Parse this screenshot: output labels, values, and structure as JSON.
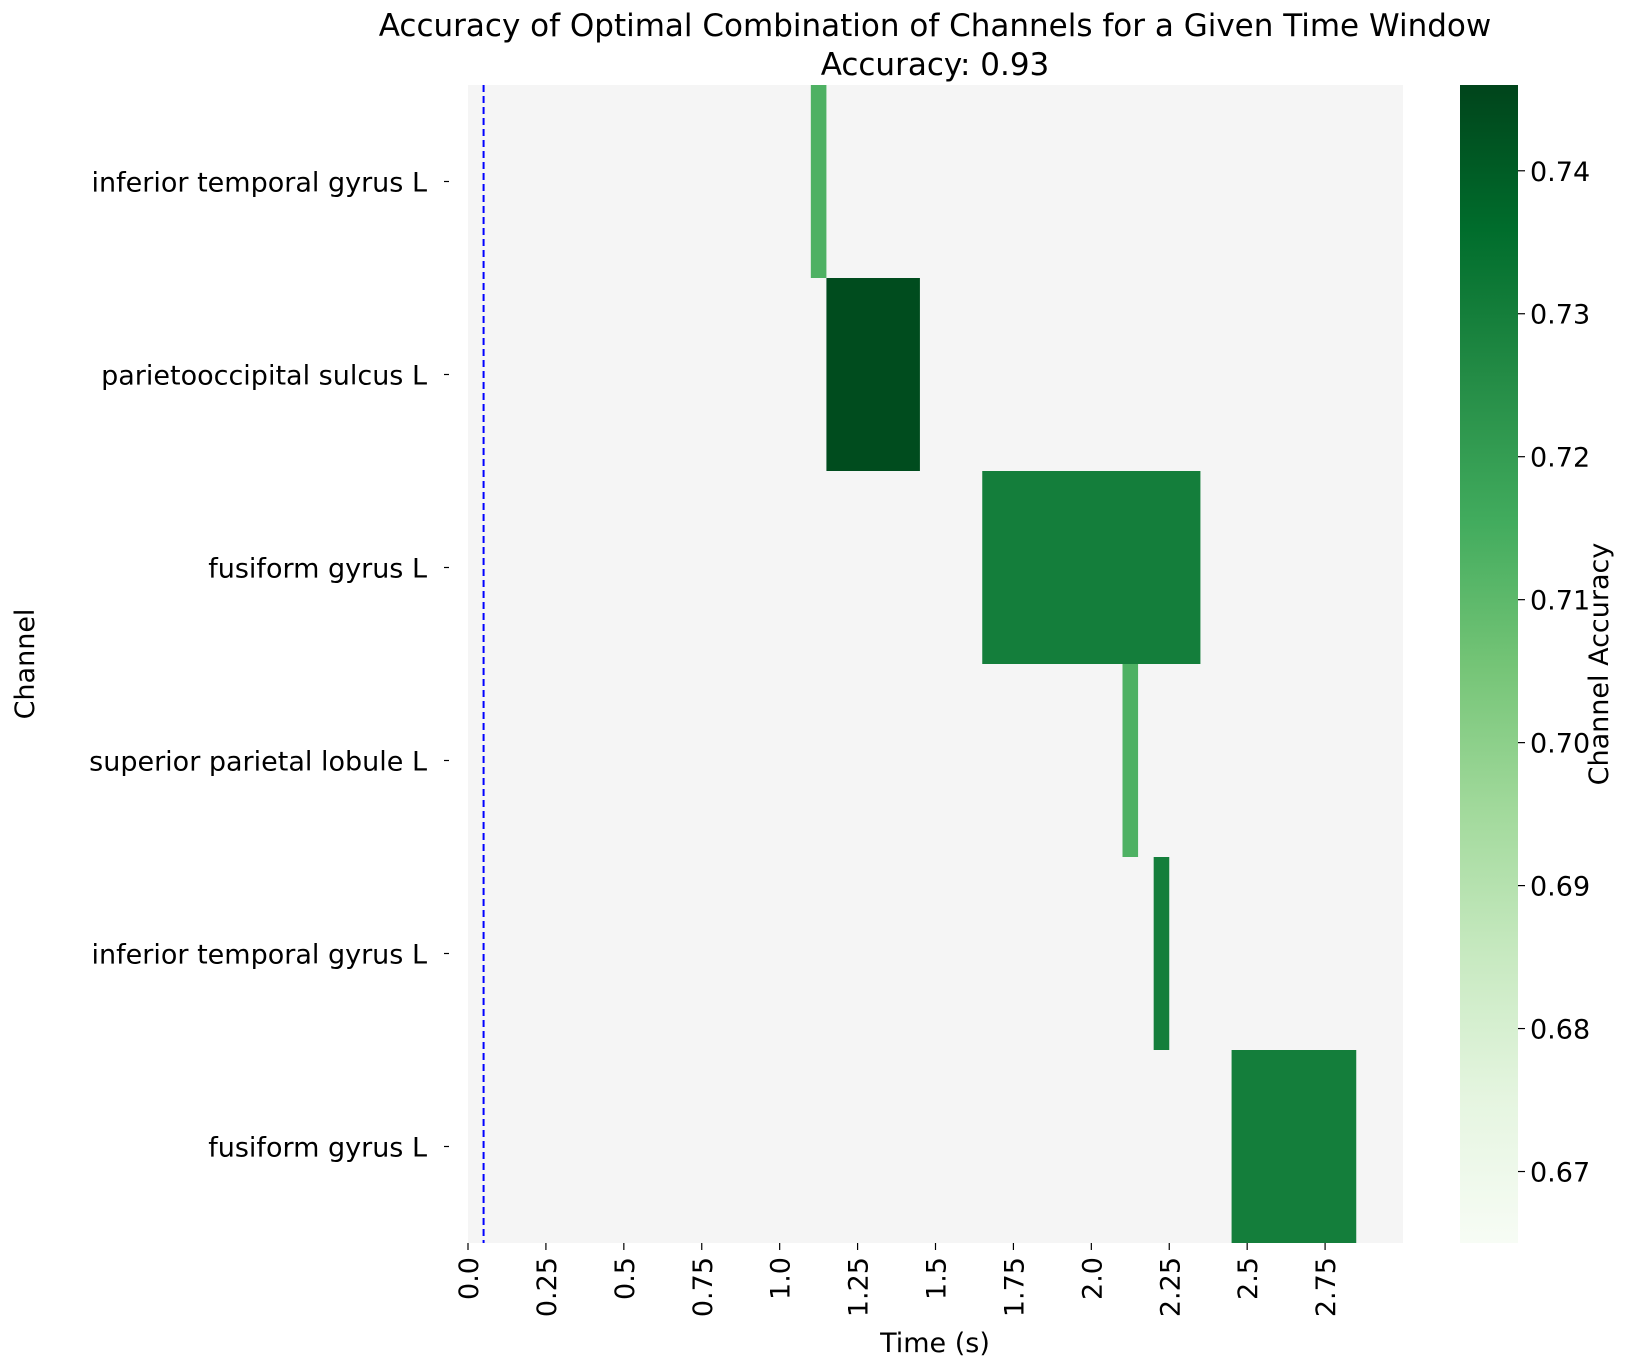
{
  "chart_data": {
    "type": "heatmap",
    "title": "Accuracy of Optimal Combination of Channels for a Given Time Window",
    "subtitle": "Accuracy: 0.93",
    "xlabel": "Time (s)",
    "ylabel": "Channel",
    "colorbar_label": "Channel Accuracy",
    "channels": [
      "inferior temporal gyrus L",
      "parietooccipital sulcus L",
      "fusiform gyrus L",
      "superior parietal lobule L",
      "inferior temporal gyrus L",
      "fusiform gyrus L"
    ],
    "xlim": [
      0,
      3.0
    ],
    "x_ticks": [
      0.0,
      0.25,
      0.5,
      0.75,
      1.0,
      1.25,
      1.5,
      1.75,
      2.0,
      2.25,
      2.5,
      2.75
    ],
    "x_tick_labels": [
      "0.0",
      "0.25",
      "0.5",
      "0.75",
      "1.0",
      "1.25",
      "1.5",
      "1.75",
      "2.0",
      "2.25",
      "2.5",
      "2.75"
    ],
    "segments": [
      {
        "row": 0,
        "t_start": 1.1,
        "t_end": 1.15,
        "value": 0.713
      },
      {
        "row": 1,
        "t_start": 1.15,
        "t_end": 1.45,
        "value": 0.744
      },
      {
        "row": 2,
        "t_start": 1.65,
        "t_end": 2.35,
        "value": 0.73
      },
      {
        "row": 3,
        "t_start": 2.1,
        "t_end": 2.15,
        "value": 0.713
      },
      {
        "row": 4,
        "t_start": 2.2,
        "t_end": 2.25,
        "value": 0.73
      },
      {
        "row": 5,
        "t_start": 2.45,
        "t_end": 2.85,
        "value": 0.73
      }
    ],
    "background_value": 0.665,
    "vline": {
      "x": 0.05,
      "color": "#0000ff",
      "style": "dashed"
    },
    "colorbar": {
      "vmin": 0.665,
      "vmax": 0.746,
      "ticks": [
        0.67,
        0.68,
        0.69,
        0.7,
        0.71,
        0.72,
        0.73,
        0.74
      ],
      "tick_labels": [
        "0.67",
        "0.68",
        "0.69",
        "0.70",
        "0.71",
        "0.72",
        "0.73",
        "0.74"
      ],
      "colormap": "Greens",
      "colors": [
        "#f7fcf5",
        "#e5f5e0",
        "#c7e9c0",
        "#a1d99b",
        "#74c476",
        "#41ab5d",
        "#238b45",
        "#006d2c",
        "#00441b"
      ]
    },
    "background_color": "#f5f5f5",
    "grid": false
  }
}
